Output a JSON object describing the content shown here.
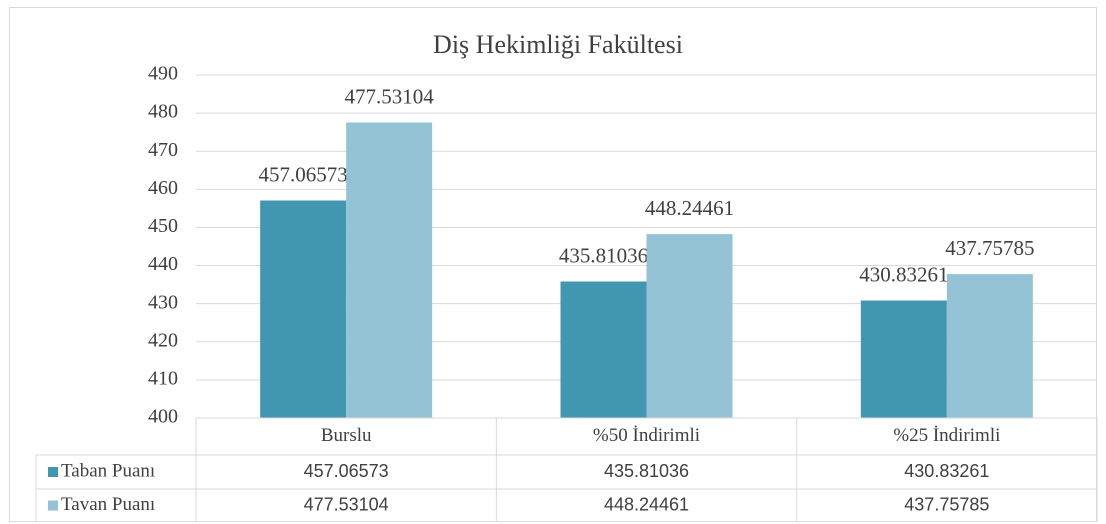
{
  "chart_data": {
    "type": "bar",
    "title": "Diş Hekimliği Fakültesi",
    "categories": [
      "Burslu",
      "%50 İndirimli",
      "%25 İndirimli"
    ],
    "series": [
      {
        "name": "Taban Puanı",
        "color": "#4196b0",
        "values": [
          457.06573,
          435.81036,
          430.83261
        ]
      },
      {
        "name": "Tavan Puanı",
        "color": "#93c3d4",
        "values": [
          477.53104,
          448.24461,
          437.75785
        ]
      }
    ],
    "ylim": [
      400,
      490
    ],
    "yticks": [
      400,
      410,
      420,
      430,
      440,
      450,
      460,
      470,
      480,
      490
    ],
    "grid": true,
    "data_table": true
  }
}
